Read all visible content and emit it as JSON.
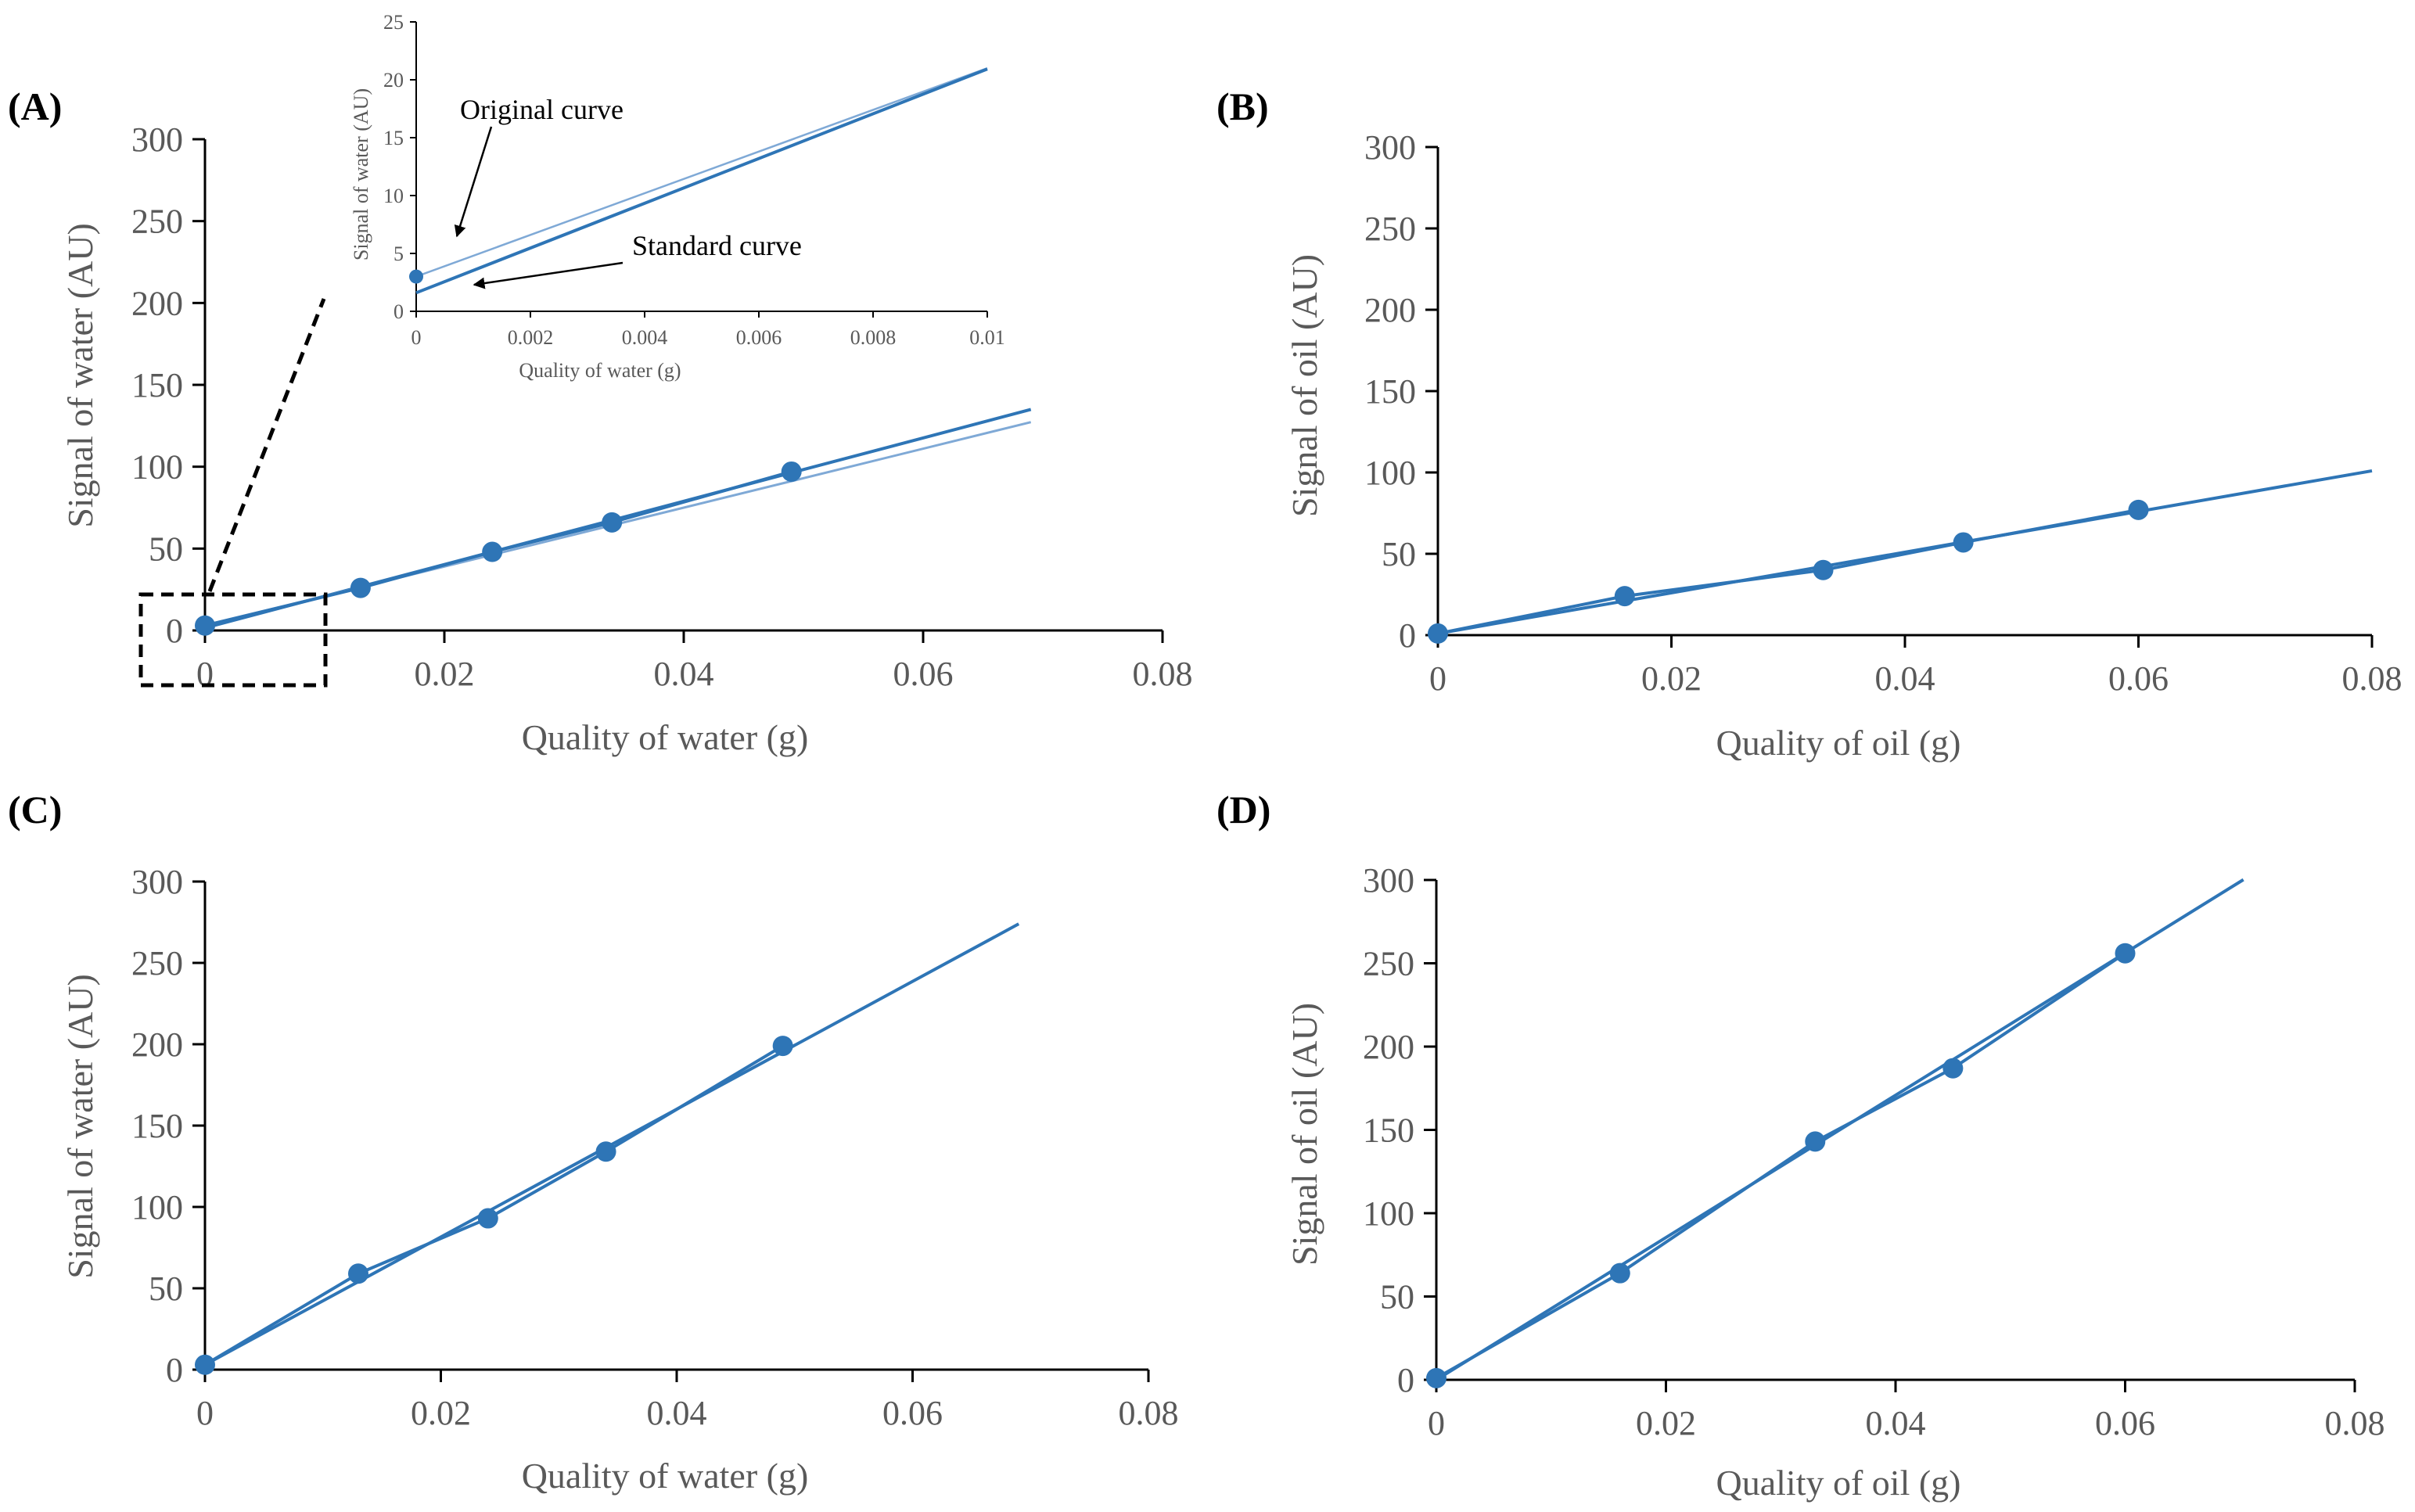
{
  "figure": {
    "colors": {
      "series": "#2E75B6",
      "series_light": "#7FA9D6",
      "axis": "#000000",
      "text": "#595959"
    },
    "icons": [
      "zoom-box-icon",
      "arrow-icon"
    ]
  },
  "chart_data": [
    {
      "panel": "(A)",
      "type": "scatter",
      "xlabel": "Quality of water (g)",
      "ylabel": "Signal of water (AU)",
      "xlim": [
        0,
        0.08
      ],
      "ylim": [
        0,
        300
      ],
      "xticks": [
        "0",
        "0.02",
        "0.04",
        "0.06",
        "0.08"
      ],
      "yticks": [
        "0",
        "50",
        "100",
        "150",
        "200",
        "250",
        "300"
      ],
      "series": [
        {
          "name": "data",
          "x": [
            0,
            0.013,
            0.024,
            0.034,
            0.049
          ],
          "y": [
            3,
            26,
            48,
            66,
            97
          ]
        },
        {
          "name": "Standard curve",
          "kind": "line",
          "slope": 1933,
          "intercept": 1.6,
          "x_end": 0.069
        },
        {
          "name": "Original curve",
          "kind": "line",
          "slope": 1800,
          "intercept": 3.0,
          "x_end": 0.069
        }
      ],
      "inset": {
        "xlabel": "Quality of water (g)",
        "ylabel": "Signal of water (AU)",
        "xlim": [
          0,
          0.01
        ],
        "ylim": [
          0,
          25
        ],
        "xticks": [
          "0",
          "0.002",
          "0.004",
          "0.006",
          "0.008",
          "0.01"
        ],
        "yticks": [
          "0",
          "5",
          "10",
          "15",
          "20",
          "25"
        ],
        "point": {
          "x": 0,
          "y": 3
        },
        "annotations": [
          "Original curve",
          "Standard curve"
        ]
      }
    },
    {
      "panel": "(B)",
      "type": "scatter",
      "xlabel": "Quality of oil (g)",
      "ylabel": "Signal of oil (AU)",
      "xlim": [
        0,
        0.08
      ],
      "ylim": [
        0,
        300
      ],
      "xticks": [
        "0",
        "0.02",
        "0.04",
        "0.06",
        "0.08"
      ],
      "yticks": [
        "0",
        "50",
        "100",
        "150",
        "200",
        "250",
        "300"
      ],
      "series": [
        {
          "name": "data",
          "x": [
            0,
            0.016,
            0.033,
            0.045,
            0.06
          ],
          "y": [
            1,
            24,
            40,
            57,
            77
          ]
        },
        {
          "name": "fit",
          "kind": "line",
          "slope": 1250,
          "intercept": 1,
          "x_end": 0.08
        }
      ]
    },
    {
      "panel": "(C)",
      "type": "scatter",
      "xlabel": "Quality of water (g)",
      "ylabel": "Signal of water (AU)",
      "xlim": [
        0,
        0.08
      ],
      "ylim": [
        0,
        300
      ],
      "xticks": [
        "0",
        "0.02",
        "0.04",
        "0.06",
        "0.08"
      ],
      "yticks": [
        "0",
        "50",
        "100",
        "150",
        "200",
        "250",
        "300"
      ],
      "series": [
        {
          "name": "data",
          "x": [
            0,
            0.013,
            0.024,
            0.034,
            0.049
          ],
          "y": [
            3,
            59,
            93,
            134,
            199
          ]
        },
        {
          "name": "fit",
          "kind": "line",
          "slope": 3927,
          "intercept": 3,
          "x_end": 0.069
        }
      ]
    },
    {
      "panel": "(D)",
      "type": "scatter",
      "xlabel": "Quality of oil (g)",
      "ylabel": "Signal of oil (AU)",
      "xlim": [
        0,
        0.08
      ],
      "ylim": [
        0,
        300
      ],
      "xticks": [
        "0",
        "0.02",
        "0.04",
        "0.06",
        "0.08"
      ],
      "yticks": [
        "0",
        "50",
        "100",
        "150",
        "200",
        "250",
        "300"
      ],
      "series": [
        {
          "name": "data",
          "x": [
            0,
            0.016,
            0.033,
            0.045,
            0.06
          ],
          "y": [
            1,
            64,
            143,
            187,
            256
          ]
        },
        {
          "name": "fit",
          "kind": "line",
          "slope": 4270,
          "intercept": 0,
          "x_end": 0.0703
        }
      ]
    }
  ]
}
